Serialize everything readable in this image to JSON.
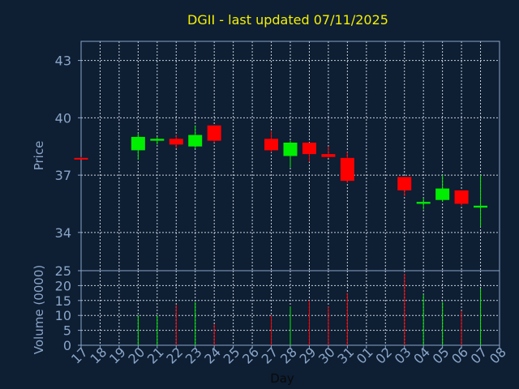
{
  "chart_data": {
    "type": "candlestick",
    "title": "DGII - last updated 07/11/2025",
    "xlabel": "Day",
    "ylabel": "Price",
    "volume_label": "Volume (0000)",
    "price_ylim": [
      32,
      44
    ],
    "price_ticks": [
      34,
      37,
      40,
      43
    ],
    "volume_ylim": [
      0,
      25
    ],
    "volume_ticks": [
      0,
      5,
      10,
      15,
      20,
      25
    ],
    "grid": true,
    "days": [
      "17",
      "18",
      "19",
      "20",
      "21",
      "22",
      "23",
      "24",
      "25",
      "26",
      "27",
      "28",
      "29",
      "30",
      "31",
      "01",
      "02",
      "03",
      "04",
      "05",
      "06",
      "07",
      "08"
    ],
    "candles": [
      {
        "day": "17",
        "open": 37.9,
        "high": 37.95,
        "low": 37.85,
        "close": 37.9,
        "volume": 0,
        "up": false
      },
      {
        "day": "20",
        "open": 38.3,
        "high": 39.2,
        "low": 37.8,
        "close": 39.0,
        "volume": 10,
        "up": true
      },
      {
        "day": "21",
        "open": 38.8,
        "high": 39.0,
        "low": 38.6,
        "close": 38.9,
        "volume": 10,
        "up": true
      },
      {
        "day": "22",
        "open": 38.9,
        "high": 39.1,
        "low": 38.4,
        "close": 38.6,
        "volume": 13.5,
        "up": false
      },
      {
        "day": "23",
        "open": 38.5,
        "high": 39.6,
        "low": 38.4,
        "close": 39.1,
        "volume": 14.5,
        "up": true
      },
      {
        "day": "24",
        "open": 39.6,
        "high": 39.6,
        "low": 38.7,
        "close": 38.8,
        "volume": 7,
        "up": false
      },
      {
        "day": "27",
        "open": 38.9,
        "high": 39.3,
        "low": 38.2,
        "close": 38.3,
        "volume": 10,
        "up": false
      },
      {
        "day": "28",
        "open": 38.0,
        "high": 38.8,
        "low": 37.4,
        "close": 38.7,
        "volume": 13,
        "up": true
      },
      {
        "day": "29",
        "open": 38.7,
        "high": 38.7,
        "low": 37.7,
        "close": 38.1,
        "volume": 15,
        "up": false
      },
      {
        "day": "30",
        "open": 38.1,
        "high": 38.5,
        "low": 37.9,
        "close": 37.95,
        "volume": 13,
        "up": false
      },
      {
        "day": "31",
        "open": 37.9,
        "high": 38.2,
        "low": 36.6,
        "close": 36.7,
        "volume": 17.5,
        "up": false
      },
      {
        "day": "03",
        "open": 36.9,
        "high": 36.9,
        "low": 35.9,
        "close": 36.2,
        "volume": 24,
        "up": false
      },
      {
        "day": "04",
        "open": 35.5,
        "high": 35.8,
        "low": 35.2,
        "close": 35.6,
        "volume": 17,
        "up": true
      },
      {
        "day": "05",
        "open": 35.7,
        "high": 37.0,
        "low": 35.6,
        "close": 36.3,
        "volume": 14.5,
        "up": true
      },
      {
        "day": "06",
        "open": 36.2,
        "high": 36.2,
        "low": 35.4,
        "close": 35.5,
        "volume": 11.5,
        "up": false
      },
      {
        "day": "07",
        "open": 35.3,
        "high": 37.0,
        "low": 34.3,
        "close": 35.4,
        "volume": 19,
        "up": true
      }
    ],
    "colors": {
      "background": "#0e1e33",
      "axis": "#8aa6c8",
      "grid": "#c8d2dc",
      "title": "#f5f000",
      "up": "#00ee00",
      "down": "#ff0000"
    }
  }
}
